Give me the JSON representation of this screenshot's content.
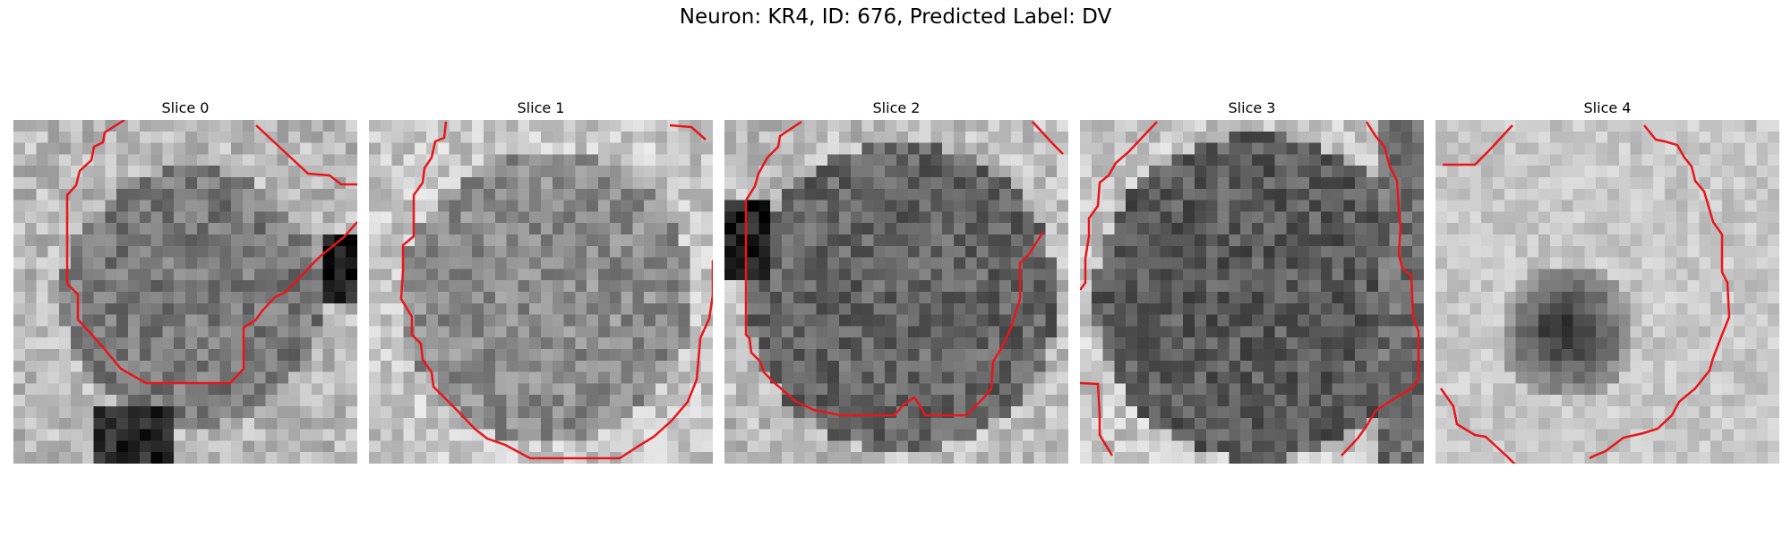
{
  "figure": {
    "suptitle": "Neuron: KR4, ID: 676, Predicted Label: DV"
  },
  "contour_color": "#e8161b",
  "slices": [
    {
      "title": "Slice 0",
      "style": "blob",
      "seed": 11
    },
    {
      "title": "Slice 1",
      "style": "disc",
      "seed": 23
    },
    {
      "title": "Slice 2",
      "style": "dark",
      "seed": 37
    },
    {
      "title": "Slice 3",
      "style": "darker",
      "seed": 53
    },
    {
      "title": "Slice 4",
      "style": "light-spot",
      "seed": 71
    }
  ]
}
